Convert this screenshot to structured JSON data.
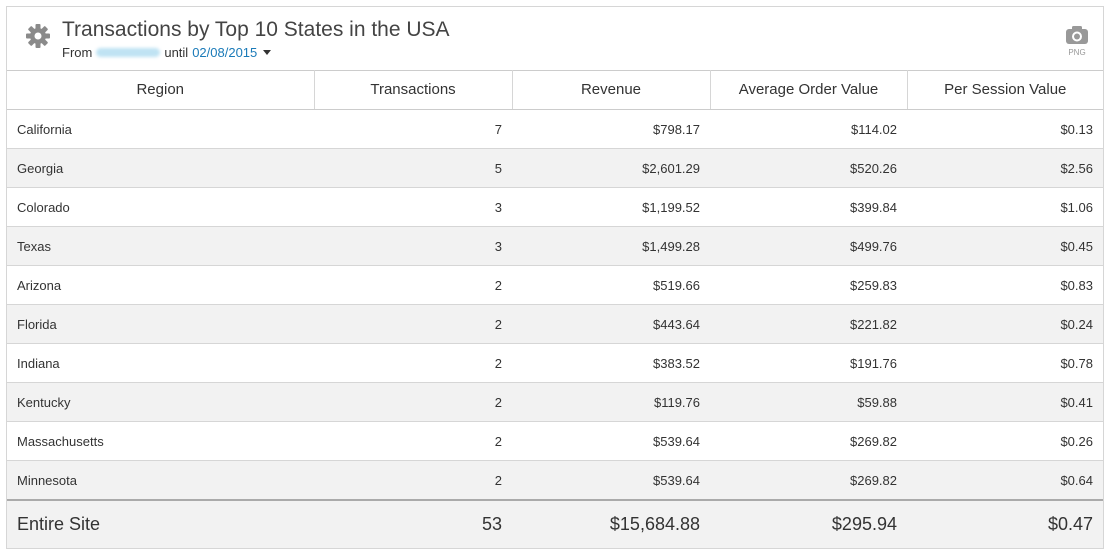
{
  "header": {
    "title": "Transactions by Top 10 States in the USA",
    "from_label": "From",
    "until_label": "until",
    "date": "02/08/2015",
    "export_label": "PNG"
  },
  "table": {
    "columns": [
      "Region",
      "Transactions",
      "Revenue",
      "Average Order Value",
      "Per Session Value"
    ],
    "rows": [
      [
        "California",
        "7",
        "$798.17",
        "$114.02",
        "$0.13"
      ],
      [
        "Georgia",
        "5",
        "$2,601.29",
        "$520.26",
        "$2.56"
      ],
      [
        "Colorado",
        "3",
        "$1,199.52",
        "$399.84",
        "$1.06"
      ],
      [
        "Texas",
        "3",
        "$1,499.28",
        "$499.76",
        "$0.45"
      ],
      [
        "Arizona",
        "2",
        "$519.66",
        "$259.83",
        "$0.83"
      ],
      [
        "Florida",
        "2",
        "$443.64",
        "$221.82",
        "$0.24"
      ],
      [
        "Indiana",
        "2",
        "$383.52",
        "$191.76",
        "$0.78"
      ],
      [
        "Kentucky",
        "2",
        "$119.76",
        "$59.88",
        "$0.41"
      ],
      [
        "Massachusetts",
        "2",
        "$539.64",
        "$269.82",
        "$0.26"
      ],
      [
        "Minnesota",
        "2",
        "$539.64",
        "$269.82",
        "$0.64"
      ]
    ],
    "footer": [
      "Entire Site",
      "53",
      "$15,684.88",
      "$295.94",
      "$0.47"
    ]
  }
}
